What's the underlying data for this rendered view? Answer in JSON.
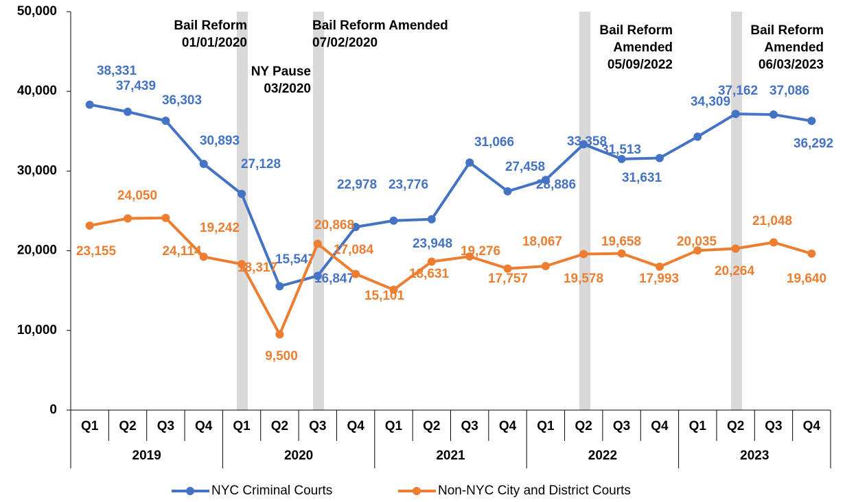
{
  "chart_data": {
    "type": "line",
    "categories": [
      "Q1",
      "Q2",
      "Q3",
      "Q4",
      "Q1",
      "Q2",
      "Q3",
      "Q4",
      "Q1",
      "Q2",
      "Q3",
      "Q4",
      "Q1",
      "Q2",
      "Q3",
      "Q4",
      "Q1",
      "Q2",
      "Q3",
      "Q4"
    ],
    "category_groups": [
      "2019",
      "2020",
      "2021",
      "2022",
      "2023"
    ],
    "series": [
      {
        "name": "NYC Criminal Courts",
        "color": "#4472c4",
        "values": [
          38331,
          37439,
          36303,
          30893,
          27128,
          15547,
          16847,
          22978,
          23776,
          23948,
          31066,
          27458,
          28886,
          33358,
          31513,
          31631,
          34309,
          37162,
          37086,
          36292
        ],
        "value_labels": [
          "38,331",
          "37,439",
          "36,303",
          "30,893",
          "27,128",
          "15,547",
          "16,847",
          "22,978",
          "23,776",
          "23,948",
          "31,066",
          "27,458",
          "28,886",
          "33,358",
          "31,513",
          "31,631",
          "34,309",
          "37,162",
          "37,086",
          "36,292"
        ]
      },
      {
        "name": "Non-NYC City and District Courts",
        "color": "#ed7d31",
        "values": [
          23155,
          24050,
          24114,
          19242,
          18317,
          9500,
          20868,
          17084,
          15101,
          18631,
          19276,
          17757,
          18067,
          19578,
          19658,
          17993,
          20035,
          20264,
          21048,
          19640
        ],
        "value_labels": [
          "23,155",
          "24,050",
          "24,114",
          "19,242",
          "18,317",
          "9,500",
          "20,868",
          "17,084",
          "15,101",
          "18,631",
          "19,276",
          "17,757",
          "18,067",
          "19,578",
          "19,658",
          "17,993",
          "20,035",
          "20,264",
          "21,048",
          "19,640"
        ]
      }
    ],
    "ylim": [
      0,
      50000
    ],
    "yticks": [
      0,
      {
        "value": 10000,
        "label": "10,000"
      },
      {
        "value": 20000,
        "label": "20,000"
      },
      {
        "value": 30000,
        "label": "30,000"
      },
      {
        "value": 40000,
        "label": "40,000"
      },
      {
        "value": 50000,
        "label": "50,000"
      }
    ],
    "annotations": [
      {
        "lines": [
          "Bail Reform",
          "01/01/2020"
        ]
      },
      {
        "lines": [
          "NY Pause",
          "03/2020"
        ]
      },
      {
        "lines": [
          "Bail Reform Amended",
          "07/02/2020"
        ]
      },
      {
        "lines": [
          "Bail Reform",
          "Amended",
          "05/09/2022"
        ]
      },
      {
        "lines": [
          "Bail Reform",
          "Amended",
          "06/03/2023"
        ]
      }
    ],
    "legend": "bottom"
  }
}
